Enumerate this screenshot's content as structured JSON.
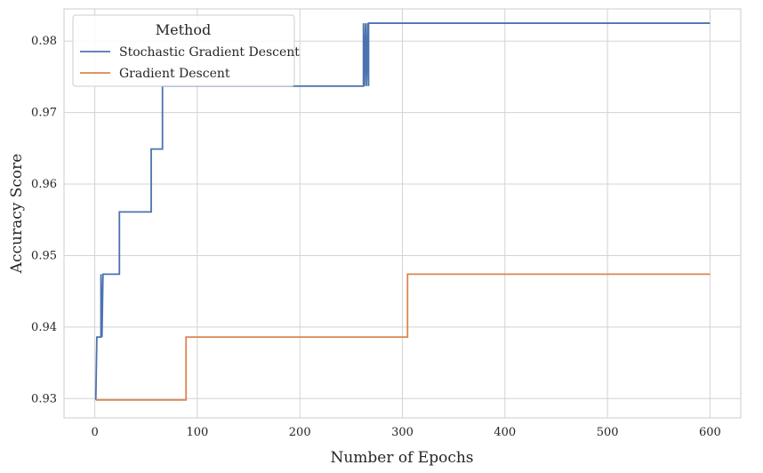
{
  "chart_data": {
    "type": "line",
    "title": "",
    "xlabel": "Number of Epochs",
    "ylabel": "Accuracy Score",
    "xlim": [
      -30,
      630
    ],
    "ylim": [
      0.9273,
      0.9845
    ],
    "xticks": [
      0,
      100,
      200,
      300,
      400,
      500,
      600
    ],
    "yticks": [
      0.93,
      0.94,
      0.95,
      0.96,
      0.97,
      0.98
    ],
    "ytick_labels": [
      "0.93",
      "0.94",
      "0.95",
      "0.96",
      "0.97",
      "0.98"
    ],
    "grid": true,
    "legend": {
      "title": "Method",
      "placement": "top-left"
    },
    "series": [
      {
        "name": "Stochastic Gradient Descent",
        "color": "#4c72b0",
        "points": [
          [
            1,
            0.9298
          ],
          [
            2,
            0.9386
          ],
          [
            6,
            0.9386
          ],
          [
            6,
            0.9474
          ],
          [
            7,
            0.9386
          ],
          [
            8,
            0.9474
          ],
          [
            24,
            0.9474
          ],
          [
            24,
            0.9561
          ],
          [
            55,
            0.9561
          ],
          [
            55,
            0.9649
          ],
          [
            66,
            0.9649
          ],
          [
            66,
            0.9737
          ],
          [
            262,
            0.9737
          ],
          [
            262,
            0.9825
          ],
          [
            263,
            0.9737
          ],
          [
            264,
            0.9825
          ],
          [
            265,
            0.9737
          ],
          [
            266,
            0.9825
          ],
          [
            267,
            0.9737
          ],
          [
            267,
            0.9825
          ],
          [
            600,
            0.9825
          ]
        ]
      },
      {
        "name": "Gradient Descent",
        "color": "#dd8452",
        "points": [
          [
            1,
            0.9298
          ],
          [
            89,
            0.9298
          ],
          [
            89,
            0.9386
          ],
          [
            305,
            0.9386
          ],
          [
            305,
            0.9474
          ],
          [
            600,
            0.9474
          ]
        ]
      }
    ]
  }
}
